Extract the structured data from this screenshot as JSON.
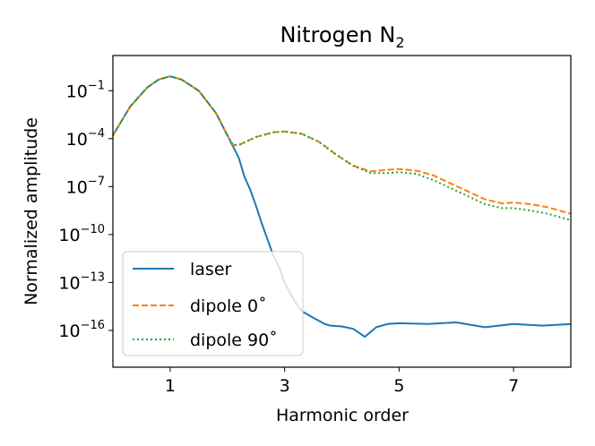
{
  "chart_data": {
    "type": "line",
    "title": "Nitrogen N",
    "title_subscript": "2",
    "xlabel": "Harmonic order",
    "ylabel": "Normalized amplitude",
    "xlim": [
      0,
      8
    ],
    "ylim_log10": [
      -18.3,
      1.2
    ],
    "yscale": "log",
    "grid": false,
    "legend_position": "lower-left",
    "x_ticks": [
      1,
      3,
      5,
      7
    ],
    "x_tick_labels": [
      "1",
      "3",
      "5",
      "7"
    ],
    "y_ticks_log10": [
      -1,
      -4,
      -7,
      -10,
      -13,
      -16
    ],
    "y_tick_bases": [
      "10",
      "10",
      "10",
      "10",
      "10",
      "10"
    ],
    "y_tick_exponents": [
      "−1",
      "−4",
      "−7",
      "−10",
      "−13",
      "−16"
    ],
    "series": [
      {
        "name": "laser",
        "color": "#1f77b4",
        "style": "solid",
        "x": [
          0.0,
          0.3,
          0.6,
          0.8,
          1.0,
          1.2,
          1.5,
          1.8,
          2.0,
          2.2,
          2.3,
          2.4,
          2.5,
          2.6,
          2.7,
          2.8,
          2.9,
          3.0,
          3.1,
          3.2,
          3.3,
          3.4,
          3.5,
          3.6,
          3.7,
          3.8,
          4.0,
          4.2,
          4.4,
          4.6,
          4.8,
          5.0,
          5.5,
          6.0,
          6.5,
          7.0,
          7.5,
          8.0
        ],
        "log10_y": [
          -3.8,
          -2.0,
          -0.8,
          -0.3,
          -0.1,
          -0.3,
          -1.0,
          -2.4,
          -3.8,
          -5.2,
          -6.4,
          -7.2,
          -8.2,
          -9.3,
          -10.3,
          -11.3,
          -12.0,
          -13.0,
          -13.7,
          -14.3,
          -14.8,
          -15.0,
          -15.2,
          -15.4,
          -15.6,
          -15.7,
          -15.75,
          -15.9,
          -16.4,
          -15.8,
          -15.6,
          -15.55,
          -15.6,
          -15.5,
          -15.8,
          -15.6,
          -15.7,
          -15.6
        ]
      },
      {
        "name": "dipole 0˚",
        "color": "#ff7f0e",
        "style": "dashed",
        "x": [
          0.0,
          0.3,
          0.6,
          0.8,
          1.0,
          1.2,
          1.5,
          1.8,
          2.0,
          2.1,
          2.2,
          2.5,
          2.8,
          3.0,
          3.3,
          3.6,
          3.9,
          4.2,
          4.5,
          4.8,
          5.0,
          5.3,
          5.6,
          5.9,
          6.2,
          6.5,
          6.8,
          7.0,
          7.3,
          7.6,
          8.0
        ],
        "log10_y": [
          -3.8,
          -2.0,
          -0.8,
          -0.3,
          -0.1,
          -0.3,
          -1.0,
          -2.4,
          -3.8,
          -4.4,
          -4.4,
          -3.9,
          -3.6,
          -3.55,
          -3.7,
          -4.2,
          -5.0,
          -5.7,
          -6.05,
          -5.95,
          -5.9,
          -6.0,
          -6.3,
          -6.8,
          -7.3,
          -7.8,
          -8.05,
          -8.0,
          -8.1,
          -8.3,
          -8.7
        ]
      },
      {
        "name": "dipole 90˚",
        "color": "#2ca02c",
        "style": "dotted",
        "x": [
          0.0,
          0.3,
          0.6,
          0.8,
          1.0,
          1.2,
          1.5,
          1.8,
          2.0,
          2.1,
          2.2,
          2.5,
          2.8,
          3.0,
          3.3,
          3.6,
          3.9,
          4.2,
          4.5,
          4.8,
          5.0,
          5.3,
          5.6,
          5.9,
          6.2,
          6.5,
          6.8,
          7.0,
          7.3,
          7.6,
          8.0
        ],
        "log10_y": [
          -3.8,
          -2.0,
          -0.8,
          -0.3,
          -0.1,
          -0.3,
          -1.0,
          -2.4,
          -3.8,
          -4.4,
          -4.4,
          -3.9,
          -3.6,
          -3.55,
          -3.7,
          -4.2,
          -5.0,
          -5.7,
          -6.15,
          -6.15,
          -6.1,
          -6.2,
          -6.6,
          -7.1,
          -7.6,
          -8.1,
          -8.35,
          -8.35,
          -8.5,
          -8.7,
          -9.1
        ]
      }
    ]
  }
}
